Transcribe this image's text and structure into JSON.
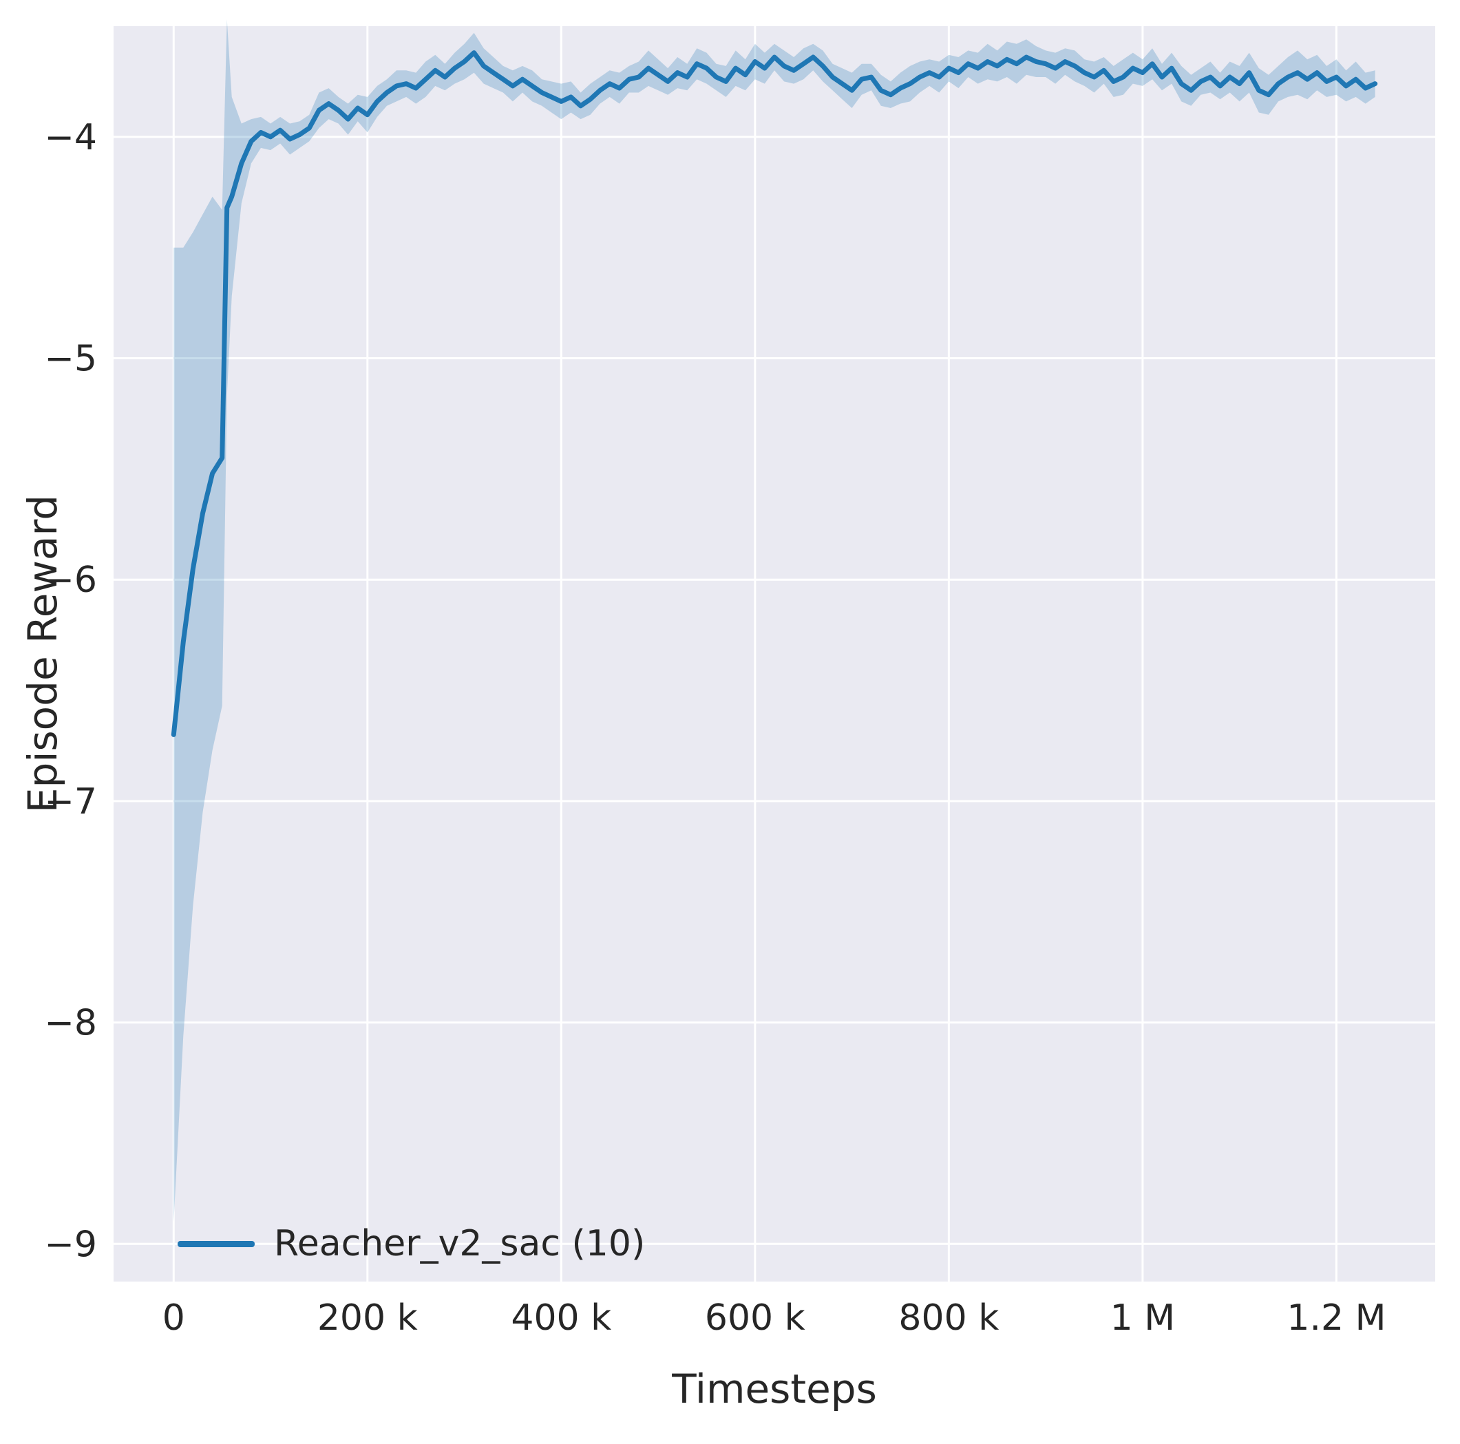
{
  "chart_data": {
    "type": "line",
    "xlabel": "Timesteps",
    "ylabel": "Episode Reward",
    "legend": [
      {
        "label": "Reacher_v2_sac (10)",
        "color": "#1f77b4"
      }
    ],
    "legend_position": "lower left",
    "grid": true,
    "xlim": [
      -62000,
      1302000
    ],
    "ylim": [
      -9.17,
      -3.5
    ],
    "x_ticks": [
      {
        "value": 0,
        "label": "0"
      },
      {
        "value": 200000,
        "label": "200 k"
      },
      {
        "value": 400000,
        "label": "400 k"
      },
      {
        "value": 600000,
        "label": "600 k"
      },
      {
        "value": 800000,
        "label": "800 k"
      },
      {
        "value": 1000000,
        "label": "1 M"
      },
      {
        "value": 1200000,
        "label": "1.2 M"
      }
    ],
    "y_ticks": [
      {
        "value": -4,
        "label": "−4"
      },
      {
        "value": -5,
        "label": "−5"
      },
      {
        "value": -6,
        "label": "−6"
      },
      {
        "value": -7,
        "label": "−7"
      },
      {
        "value": -8,
        "label": "−8"
      },
      {
        "value": -9,
        "label": "−9"
      }
    ],
    "colors": {
      "figure_bg": "#ffffff",
      "plot_bg": "#eaeaf2",
      "grid": "#ffffff",
      "text": "#262626",
      "band_alpha": 0.25
    },
    "series": [
      {
        "name": "Reacher_v2_sac (10)",
        "color": "#1f77b4",
        "x": [
          0,
          10000,
          20000,
          30000,
          40000,
          50000,
          55000,
          60000,
          70000,
          80000,
          90000,
          100000,
          110000,
          120000,
          130000,
          140000,
          150000,
          160000,
          170000,
          180000,
          190000,
          200000,
          210000,
          220000,
          230000,
          240000,
          250000,
          260000,
          270000,
          280000,
          290000,
          300000,
          310000,
          320000,
          330000,
          340000,
          350000,
          360000,
          370000,
          380000,
          390000,
          400000,
          410000,
          420000,
          430000,
          440000,
          450000,
          460000,
          470000,
          480000,
          490000,
          500000,
          510000,
          520000,
          530000,
          540000,
          550000,
          560000,
          570000,
          580000,
          590000,
          600000,
          610000,
          620000,
          630000,
          640000,
          650000,
          660000,
          670000,
          680000,
          690000,
          700000,
          710000,
          720000,
          730000,
          740000,
          750000,
          760000,
          770000,
          780000,
          790000,
          800000,
          810000,
          820000,
          830000,
          840000,
          850000,
          860000,
          870000,
          880000,
          890000,
          900000,
          910000,
          920000,
          930000,
          940000,
          950000,
          960000,
          970000,
          980000,
          990000,
          1000000,
          1010000,
          1020000,
          1030000,
          1040000,
          1050000,
          1060000,
          1070000,
          1080000,
          1090000,
          1100000,
          1110000,
          1120000,
          1130000,
          1140000,
          1150000,
          1160000,
          1170000,
          1180000,
          1190000,
          1200000,
          1210000,
          1220000,
          1230000,
          1240000
        ],
        "y": [
          -6.7,
          -6.28,
          -5.95,
          -5.7,
          -5.52,
          -5.45,
          -4.32,
          -4.27,
          -4.12,
          -4.02,
          -3.98,
          -4.0,
          -3.97,
          -4.01,
          -3.99,
          -3.96,
          -3.88,
          -3.85,
          -3.88,
          -3.92,
          -3.87,
          -3.9,
          -3.84,
          -3.8,
          -3.77,
          -3.76,
          -3.78,
          -3.74,
          -3.7,
          -3.73,
          -3.69,
          -3.66,
          -3.62,
          -3.68,
          -3.71,
          -3.74,
          -3.77,
          -3.74,
          -3.77,
          -3.8,
          -3.82,
          -3.84,
          -3.82,
          -3.86,
          -3.83,
          -3.79,
          -3.76,
          -3.78,
          -3.74,
          -3.73,
          -3.69,
          -3.72,
          -3.75,
          -3.71,
          -3.73,
          -3.67,
          -3.69,
          -3.73,
          -3.75,
          -3.69,
          -3.72,
          -3.66,
          -3.69,
          -3.64,
          -3.68,
          -3.7,
          -3.67,
          -3.64,
          -3.68,
          -3.73,
          -3.76,
          -3.79,
          -3.74,
          -3.73,
          -3.79,
          -3.81,
          -3.78,
          -3.76,
          -3.73,
          -3.71,
          -3.73,
          -3.69,
          -3.71,
          -3.67,
          -3.69,
          -3.66,
          -3.68,
          -3.65,
          -3.67,
          -3.64,
          -3.66,
          -3.67,
          -3.69,
          -3.66,
          -3.68,
          -3.71,
          -3.73,
          -3.7,
          -3.75,
          -3.73,
          -3.69,
          -3.71,
          -3.67,
          -3.73,
          -3.69,
          -3.76,
          -3.79,
          -3.75,
          -3.73,
          -3.77,
          -3.73,
          -3.76,
          -3.71,
          -3.79,
          -3.81,
          -3.76,
          -3.73,
          -3.71,
          -3.74,
          -3.71,
          -3.75,
          -3.73,
          -3.77,
          -3.74,
          -3.78,
          -3.76
        ],
        "band_halfwidth": [
          2.2,
          1.78,
          1.52,
          1.35,
          1.25,
          1.12,
          0.85,
          0.45,
          0.18,
          0.1,
          0.07,
          0.06,
          0.06,
          0.07,
          0.06,
          0.06,
          0.08,
          0.07,
          0.06,
          0.07,
          0.06,
          0.08,
          0.07,
          0.06,
          0.07,
          0.06,
          0.07,
          0.08,
          0.07,
          0.06,
          0.07,
          0.08,
          0.09,
          0.08,
          0.07,
          0.06,
          0.07,
          0.06,
          0.07,
          0.06,
          0.07,
          0.08,
          0.07,
          0.06,
          0.07,
          0.06,
          0.06,
          0.07,
          0.06,
          0.07,
          0.08,
          0.07,
          0.06,
          0.07,
          0.06,
          0.07,
          0.07,
          0.06,
          0.07,
          0.08,
          0.07,
          0.08,
          0.07,
          0.06,
          0.07,
          0.06,
          0.07,
          0.06,
          0.07,
          0.06,
          0.07,
          0.08,
          0.07,
          0.06,
          0.07,
          0.06,
          0.07,
          0.08,
          0.07,
          0.06,
          0.07,
          0.06,
          0.07,
          0.06,
          0.07,
          0.08,
          0.07,
          0.08,
          0.09,
          0.08,
          0.07,
          0.06,
          0.07,
          0.06,
          0.07,
          0.06,
          0.07,
          0.06,
          0.07,
          0.08,
          0.07,
          0.06,
          0.07,
          0.06,
          0.07,
          0.08,
          0.07,
          0.06,
          0.07,
          0.06,
          0.07,
          0.08,
          0.09,
          0.1,
          0.09,
          0.08,
          0.09,
          0.1,
          0.09,
          0.08,
          0.07,
          0.08,
          0.07,
          0.08,
          0.07,
          0.06
        ]
      }
    ]
  }
}
